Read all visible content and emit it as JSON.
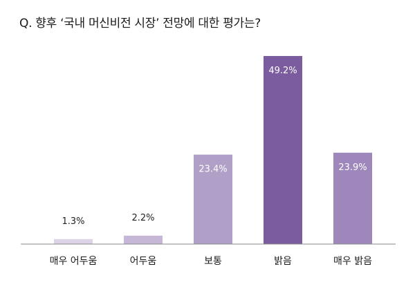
{
  "chart_data": {
    "type": "bar",
    "title": "Q. 향후 ‘국내 머신비전 시장’ 전망에 대한 평가는?",
    "xlabel": "",
    "ylabel": "",
    "categories": [
      "매우 어두움",
      "어두움",
      "보통",
      "밝음",
      "매우 밝음"
    ],
    "values": [
      1.3,
      2.2,
      23.4,
      49.2,
      23.9
    ],
    "value_labels": [
      "1.3%",
      "2.2%",
      "23.4%",
      "49.2%",
      "23.9%"
    ],
    "unit": "%",
    "ylim": [
      0,
      49.2
    ],
    "grid": false,
    "legend": "none",
    "colors": [
      "#dcd3e6",
      "#c6b7d6",
      "#b09fc7",
      "#7b5c9e",
      "#9e88bb"
    ],
    "label_colors": [
      "#222222",
      "#222222",
      "#ffffff",
      "#ffffff",
      "#ffffff"
    ]
  }
}
